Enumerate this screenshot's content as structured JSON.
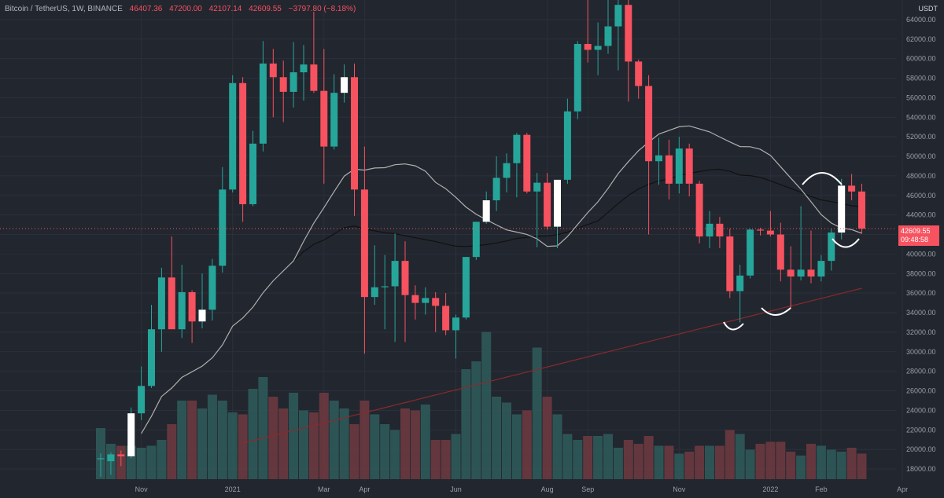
{
  "header": {
    "symbol": "Bitcoin / TetherUS, 1W, BINANCE",
    "open": "46407.36",
    "high": "47200.00",
    "low": "42107.14",
    "close": "42609.55",
    "change": "−3797.80 (−8.18%)"
  },
  "currency": "USDT",
  "price_tag": {
    "price": "42609.55",
    "countdown": "09:48:58"
  },
  "colors": {
    "up": "#26a69a",
    "down": "#f6525f",
    "bg": "#22262f",
    "ma_fast": "#b0b0b0",
    "ma_mid": "#111111",
    "ma_slow": "#8a2a2a"
  },
  "chart_data": {
    "type": "candlestick",
    "title": "Bitcoin / TetherUS, 1W, BINANCE",
    "y_ticks": [
      "18000.00",
      "20000.00",
      "22000.00",
      "24000.00",
      "26000.00",
      "28000.00",
      "30000.00",
      "32000.00",
      "34000.00",
      "36000.00",
      "38000.00",
      "40000.00",
      "42000.00",
      "44000.00",
      "46000.00",
      "48000.00",
      "50000.00",
      "52000.00",
      "54000.00",
      "56000.00",
      "58000.00",
      "60000.00",
      "62000.00",
      "64000.00"
    ],
    "ylim": [
      16800,
      66000
    ],
    "x_labels": [
      {
        "label": "Nov",
        "index": 4
      },
      {
        "label": "2021",
        "index": 13
      },
      {
        "label": "Mar",
        "index": 22
      },
      {
        "label": "Apr",
        "index": 26
      },
      {
        "label": "Jun",
        "index": 35
      },
      {
        "label": "Aug",
        "index": 44
      },
      {
        "label": "Sep",
        "index": 48
      },
      {
        "label": "Nov",
        "index": 57
      },
      {
        "label": "2022",
        "index": 66
      },
      {
        "label": "Feb",
        "index": 71
      },
      {
        "label": "Apr",
        "index": 79
      }
    ],
    "candles": [
      {
        "o": 19000,
        "h": 19600,
        "l": 17200,
        "c": 19100
      },
      {
        "o": 18800,
        "h": 19700,
        "l": 17400,
        "c": 19500
      },
      {
        "o": 19500,
        "h": 19900,
        "l": 18300,
        "c": 19300
      },
      {
        "o": 19300,
        "h": 24300,
        "l": 19100,
        "c": 23700
      },
      {
        "o": 23700,
        "h": 28500,
        "l": 23000,
        "c": 26500
      },
      {
        "o": 26500,
        "h": 34800,
        "l": 26300,
        "c": 32300
      },
      {
        "o": 32300,
        "h": 38600,
        "l": 30000,
        "c": 37600
      },
      {
        "o": 37600,
        "h": 41800,
        "l": 32500,
        "c": 32300
      },
      {
        "o": 32300,
        "h": 38900,
        "l": 31400,
        "c": 36100
      },
      {
        "o": 36100,
        "h": 36300,
        "l": 30900,
        "c": 33100
      },
      {
        "o": 33100,
        "h": 38000,
        "l": 32400,
        "c": 34300
      },
      {
        "o": 34300,
        "h": 39500,
        "l": 33200,
        "c": 38800
      },
      {
        "o": 38800,
        "h": 48900,
        "l": 38100,
        "c": 46600
      },
      {
        "o": 46600,
        "h": 58300,
        "l": 46300,
        "c": 57500
      },
      {
        "o": 57500,
        "h": 58100,
        "l": 43300,
        "c": 45100
      },
      {
        "o": 45100,
        "h": 52600,
        "l": 44900,
        "c": 51300
      },
      {
        "o": 51300,
        "h": 61800,
        "l": 50500,
        "c": 59500
      },
      {
        "o": 59500,
        "h": 61000,
        "l": 54000,
        "c": 58100
      },
      {
        "o": 58100,
        "h": 59800,
        "l": 53500,
        "c": 56600
      },
      {
        "o": 56600,
        "h": 61700,
        "l": 55000,
        "c": 58600
      },
      {
        "o": 58600,
        "h": 61400,
        "l": 55700,
        "c": 59400
      },
      {
        "o": 59400,
        "h": 64800,
        "l": 56500,
        "c": 56700
      },
      {
        "o": 56700,
        "h": 61000,
        "l": 47200,
        "c": 51000
      },
      {
        "o": 51000,
        "h": 58400,
        "l": 50700,
        "c": 56500
      },
      {
        "o": 56500,
        "h": 59400,
        "l": 55500,
        "c": 58100
      },
      {
        "o": 58100,
        "h": 59500,
        "l": 43900,
        "c": 46600
      },
      {
        "o": 46600,
        "h": 51000,
        "l": 29800,
        "c": 35600
      },
      {
        "o": 35600,
        "h": 40900,
        "l": 34800,
        "c": 36600
      },
      {
        "o": 36600,
        "h": 39900,
        "l": 32300,
        "c": 36700
      },
      {
        "o": 36700,
        "h": 42100,
        "l": 31000,
        "c": 39300
      },
      {
        "o": 39300,
        "h": 41300,
        "l": 31000,
        "c": 35800
      },
      {
        "o": 35800,
        "h": 36800,
        "l": 33300,
        "c": 35000
      },
      {
        "o": 35000,
        "h": 36600,
        "l": 33800,
        "c": 35500
      },
      {
        "o": 35500,
        "h": 36100,
        "l": 32000,
        "c": 34700
      },
      {
        "o": 34700,
        "h": 36000,
        "l": 31700,
        "c": 32200
      },
      {
        "o": 32200,
        "h": 33800,
        "l": 29300,
        "c": 33500
      },
      {
        "o": 33500,
        "h": 39600,
        "l": 33300,
        "c": 39700
      },
      {
        "o": 39700,
        "h": 43200,
        "l": 39400,
        "c": 43300
      },
      {
        "o": 43300,
        "h": 46400,
        "l": 43100,
        "c": 45500
      },
      {
        "o": 45500,
        "h": 50000,
        "l": 44400,
        "c": 47800
      },
      {
        "o": 47800,
        "h": 50300,
        "l": 46300,
        "c": 49300
      },
      {
        "o": 49300,
        "h": 52400,
        "l": 45800,
        "c": 52200
      },
      {
        "o": 52200,
        "h": 52400,
        "l": 46200,
        "c": 46400
      },
      {
        "o": 46400,
        "h": 48300,
        "l": 40700,
        "c": 47300
      },
      {
        "o": 47300,
        "h": 48300,
        "l": 42500,
        "c": 42800
      },
      {
        "o": 42800,
        "h": 47200,
        "l": 40600,
        "c": 47600
      },
      {
        "o": 47600,
        "h": 55900,
        "l": 47200,
        "c": 54600
      },
      {
        "o": 54600,
        "h": 61800,
        "l": 53800,
        "c": 61500
      },
      {
        "o": 61500,
        "h": 66900,
        "l": 59600,
        "c": 60900
      },
      {
        "o": 60900,
        "h": 63700,
        "l": 58300,
        "c": 61300
      },
      {
        "o": 61300,
        "h": 67000,
        "l": 60500,
        "c": 63300
      },
      {
        "o": 63300,
        "h": 66300,
        "l": 58800,
        "c": 65500
      },
      {
        "o": 65500,
        "h": 66100,
        "l": 55600,
        "c": 59700
      },
      {
        "o": 59700,
        "h": 59900,
        "l": 55900,
        "c": 57200
      },
      {
        "o": 57200,
        "h": 58300,
        "l": 42000,
        "c": 49500
      },
      {
        "o": 49500,
        "h": 51900,
        "l": 47100,
        "c": 50100
      },
      {
        "o": 50100,
        "h": 51700,
        "l": 45600,
        "c": 47200
      },
      {
        "o": 47200,
        "h": 52000,
        "l": 46200,
        "c": 50800
      },
      {
        "o": 50800,
        "h": 51300,
        "l": 45900,
        "c": 47200
      },
      {
        "o": 47200,
        "h": 47500,
        "l": 41100,
        "c": 41800
      },
      {
        "o": 41800,
        "h": 44400,
        "l": 40600,
        "c": 43100
      },
      {
        "o": 43100,
        "h": 43800,
        "l": 40600,
        "c": 41800
      },
      {
        "o": 41800,
        "h": 42600,
        "l": 35500,
        "c": 36200
      },
      {
        "o": 36200,
        "h": 38900,
        "l": 33000,
        "c": 37800
      },
      {
        "o": 37800,
        "h": 42600,
        "l": 37500,
        "c": 42500
      },
      {
        "o": 42500,
        "h": 42700,
        "l": 41900,
        "c": 42400
      },
      {
        "o": 42400,
        "h": 44400,
        "l": 41800,
        "c": 42000
      },
      {
        "o": 42000,
        "h": 43200,
        "l": 37200,
        "c": 38400
      },
      {
        "o": 38400,
        "h": 40800,
        "l": 34400,
        "c": 37700
      },
      {
        "o": 37700,
        "h": 44900,
        "l": 37300,
        "c": 38400
      },
      {
        "o": 38400,
        "h": 42400,
        "l": 37000,
        "c": 37700
      },
      {
        "o": 37700,
        "h": 39900,
        "l": 37200,
        "c": 39300
      },
      {
        "o": 39300,
        "h": 42600,
        "l": 38300,
        "c": 42200
      },
      {
        "o": 42200,
        "h": 47700,
        "l": 41500,
        "c": 47000
      },
      {
        "o": 47000,
        "h": 48200,
        "l": 45500,
        "c": 46400
      },
      {
        "o": 46400,
        "h": 47200,
        "l": 42100,
        "c": 42600
      }
    ],
    "volume": [
      {
        "v": 0.26
      },
      {
        "v": 0.18
      },
      {
        "v": 0.17
      },
      {
        "v": 0.17
      },
      {
        "v": 0.16
      },
      {
        "v": 0.17
      },
      {
        "v": 0.2
      },
      {
        "v": 0.28
      },
      {
        "v": 0.4
      },
      {
        "v": 0.4
      },
      {
        "v": 0.36
      },
      {
        "v": 0.43
      },
      {
        "v": 0.4
      },
      {
        "v": 0.34
      },
      {
        "v": 0.33
      },
      {
        "v": 0.46
      },
      {
        "v": 0.52
      },
      {
        "v": 0.42
      },
      {
        "v": 0.36
      },
      {
        "v": 0.44
      },
      {
        "v": 0.35
      },
      {
        "v": 0.34
      },
      {
        "v": 0.44
      },
      {
        "v": 0.4
      },
      {
        "v": 0.36
      },
      {
        "v": 0.28
      },
      {
        "v": 0.4
      },
      {
        "v": 0.33
      },
      {
        "v": 0.28
      },
      {
        "v": 0.25
      },
      {
        "v": 0.36
      },
      {
        "v": 0.35
      },
      {
        "v": 0.38
      },
      {
        "v": 0.2
      },
      {
        "v": 0.2
      },
      {
        "v": 0.23
      },
      {
        "v": 0.56
      },
      {
        "v": 0.6
      },
      {
        "v": 0.75
      },
      {
        "v": 0.42
      },
      {
        "v": 0.39
      },
      {
        "v": 0.33
      },
      {
        "v": 0.35
      },
      {
        "v": 0.67
      },
      {
        "v": 0.42
      },
      {
        "v": 0.33
      },
      {
        "v": 0.23
      },
      {
        "v": 0.2
      },
      {
        "v": 0.22
      },
      {
        "v": 0.22
      },
      {
        "v": 0.23
      },
      {
        "v": 0.16
      },
      {
        "v": 0.2
      },
      {
        "v": 0.18
      },
      {
        "v": 0.22
      },
      {
        "v": 0.17
      },
      {
        "v": 0.17
      },
      {
        "v": 0.13
      },
      {
        "v": 0.14
      },
      {
        "v": 0.17
      },
      {
        "v": 0.17
      },
      {
        "v": 0.17
      },
      {
        "v": 0.25
      },
      {
        "v": 0.23
      },
      {
        "v": 0.15
      },
      {
        "v": 0.18
      },
      {
        "v": 0.19
      },
      {
        "v": 0.19
      },
      {
        "v": 0.14
      },
      {
        "v": 0.12
      },
      {
        "v": 0.18
      },
      {
        "v": 0.17
      },
      {
        "v": 0.15
      },
      {
        "v": 0.14
      },
      {
        "v": 0.16
      },
      {
        "v": 0.13
      }
    ],
    "ma_fast_label": "",
    "grid": true
  }
}
